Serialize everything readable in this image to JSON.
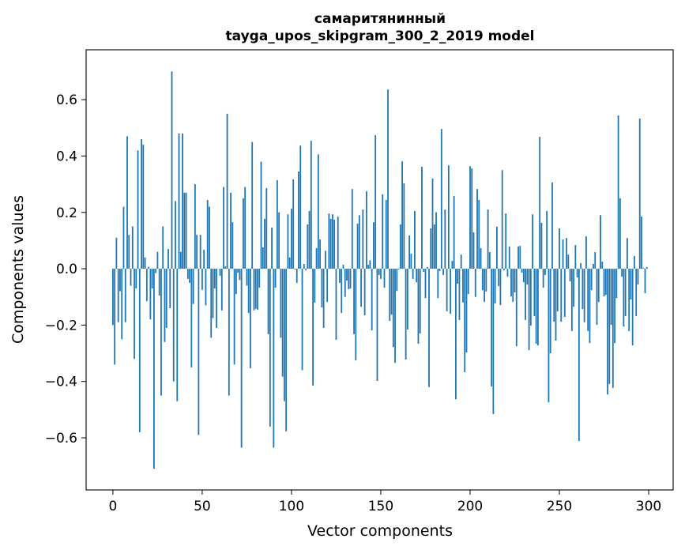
{
  "chart_data": {
    "type": "bar",
    "title": [
      "самаритянинный",
      "tayga_upos_skipgram_300_2_2019 model"
    ],
    "xlabel": "Vector components",
    "ylabel": "Components values",
    "xlim": [
      -15,
      313.7
    ],
    "ylim": [
      -0.785,
      0.777
    ],
    "xticks": [
      0,
      50,
      100,
      150,
      200,
      250,
      300
    ],
    "xtick_labels": [
      "0",
      "50",
      "100",
      "150",
      "200",
      "250",
      "300"
    ],
    "yticks": [
      -0.6,
      -0.4,
      -0.2,
      0.0,
      0.2,
      0.4,
      0.6
    ],
    "ytick_labels": [
      "−0.6",
      "−0.4",
      "−0.2",
      "0.0",
      "0.2",
      "0.4",
      "0.6"
    ],
    "grid": false,
    "bar_color": "#1f77b4",
    "values": [
      -0.2,
      -0.34,
      0.11,
      -0.19,
      -0.08,
      -0.25,
      0.22,
      -0.19,
      0.47,
      0.12,
      -0.06,
      0.15,
      -0.32,
      -0.07,
      0.42,
      -0.58,
      0.46,
      0.44,
      0.04,
      -0.115,
      0.007,
      -0.18,
      -0.07,
      -0.71,
      -0.015,
      0.06,
      -0.095,
      -0.45,
      0.15,
      -0.26,
      -0.21,
      0.07,
      -0.14,
      0.7,
      -0.4,
      0.24,
      -0.47,
      0.48,
      0.06,
      0.48,
      0.27,
      0.27,
      -0.036,
      -0.05,
      -0.35,
      -0.125,
      0.3,
      0.12,
      -0.59,
      0.12,
      -0.075,
      0.067,
      -0.13,
      0.244,
      0.22,
      -0.245,
      -0.175,
      -0.07,
      -0.21,
      0.0,
      -0.025,
      -0.148,
      0.29,
      0.008,
      0.55,
      -0.45,
      0.27,
      0.165,
      -0.34,
      -0.09,
      -0.014,
      -0.04,
      -0.635,
      0.25,
      0.29,
      -0.06,
      -0.157,
      -0.353,
      0.45,
      -0.148,
      -0.142,
      -0.145,
      -0.067,
      0.38,
      0.076,
      0.177,
      0.286,
      -0.232,
      -0.56,
      0.146,
      -0.635,
      -0.067,
      0.314,
      0.2,
      -0.245,
      -0.383,
      -0.47,
      -0.577,
      0.193,
      0.04,
      0.213,
      0.317,
      -0.003,
      -0.05,
      0.345,
      0.437,
      -0.36,
      0.017,
      -0.006,
      0.157,
      0.205,
      0.454,
      -0.415,
      -0.12,
      0.073,
      0.406,
      0.104,
      -0.137,
      -0.21,
      0.064,
      -0.118,
      0.196,
      0.177,
      0.193,
      0.174,
      -0.252,
      0.185,
      -0.05,
      -0.157,
      0.014,
      -0.1,
      -0.042,
      -0.073,
      -0.07,
      0.283,
      -0.232,
      -0.325,
      0.16,
      0.19,
      -0.135,
      0.21,
      -0.165,
      0.275,
      0.014,
      0.03,
      -0.219,
      0.165,
      0.474,
      -0.398,
      -0.022,
      -0.036,
      0.264,
      -0.067,
      0.244,
      0.636,
      -0.185,
      -0.163,
      -0.278,
      -0.334,
      -0.079,
      -0.003,
      0.157,
      0.381,
      0.303,
      -0.322,
      -0.216,
      0.118,
      0.053,
      -0.036,
      0.205,
      -0.048,
      -0.266,
      -0.23,
      0.362,
      -0.011,
      -0.104,
      0.006,
      -0.42,
      0.143,
      0.32,
      0.157,
      0.2,
      -0.104,
      -0.008,
      0.496,
      -0.022,
      0.21,
      -0.151,
      0.367,
      -0.16,
      0.028,
      0.258,
      -0.463,
      -0.053,
      -0.182,
      0.05,
      -0.12,
      -0.367,
      -0.297,
      -0.09,
      0.364,
      0.356,
      0.129,
      -0.1,
      0.283,
      0.244,
      0.073,
      -0.076,
      -0.118,
      -0.081,
      0.21,
      0.059,
      -0.418,
      -0.516,
      -0.123,
      0.149,
      -0.062,
      -0.129,
      0.35,
      -0.006,
      0.196,
      -0.028,
      0.079,
      -0.098,
      -0.118,
      -0.084,
      -0.275,
      0.079,
      0.081,
      -0.014,
      -0.048,
      -0.182,
      -0.056,
      -0.289,
      -0.202,
      0.193,
      -0.168,
      -0.266,
      -0.272,
      0.468,
      0.163,
      -0.067,
      -0.022,
      0.205,
      -0.474,
      -0.3,
      0.306,
      -0.188,
      -0.255,
      -0.151,
      0.143,
      -0.188,
      0.104,
      -0.171,
      0.109,
      0.05,
      -0.045,
      -0.221,
      -0.135,
      0.084,
      -0.031,
      -0.611,
      0.02,
      -0.143,
      -0.19,
      0.115,
      -0.221,
      -0.264,
      -0.076,
      0.017,
      0.059,
      -0.199,
      -0.118,
      0.19,
      0.025,
      -0.098,
      -0.093,
      -0.446,
      -0.409,
      -0.199,
      -0.423,
      -0.264,
      -0.104,
      0.544,
      0.25,
      -0.028,
      -0.205,
      -0.168,
      0.109,
      -0.221,
      -0.109,
      -0.272,
      0.045,
      -0.168,
      -0.056,
      0.533,
      0.185,
      0.003,
      -0.087,
      0.006
    ]
  }
}
